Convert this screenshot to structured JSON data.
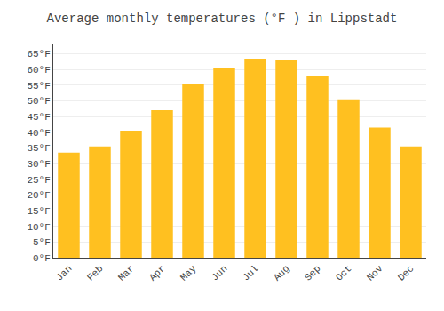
{
  "chart_data": {
    "type": "bar",
    "title": "Average monthly temperatures (°F ) in Lippstadt",
    "categories": [
      "Jan",
      "Feb",
      "Mar",
      "Apr",
      "May",
      "Jun",
      "Jul",
      "Aug",
      "Sep",
      "Oct",
      "Nov",
      "Dec"
    ],
    "values": [
      33.5,
      35.5,
      40.5,
      47.0,
      55.5,
      60.5,
      63.5,
      63.0,
      58.0,
      50.5,
      41.5,
      35.5
    ],
    "color": "#FFC020",
    "ylim": [
      0,
      68
    ],
    "yticks": [
      {
        "value": 0,
        "label": "0°F"
      },
      {
        "value": 5,
        "label": "5°F"
      },
      {
        "value": 10,
        "label": "10°F"
      },
      {
        "value": 15,
        "label": "15°F"
      },
      {
        "value": 20,
        "label": "20°F"
      },
      {
        "value": 25,
        "label": "25°F"
      },
      {
        "value": 30,
        "label": "30°F"
      },
      {
        "value": 35,
        "label": "35°F"
      },
      {
        "value": 40,
        "label": "40°F"
      },
      {
        "value": 45,
        "label": "45°F"
      },
      {
        "value": 50,
        "label": "50°F"
      },
      {
        "value": 55,
        "label": "55°F"
      },
      {
        "value": 60,
        "label": "60°F"
      },
      {
        "value": 65,
        "label": "65°F"
      }
    ],
    "grid": true
  }
}
